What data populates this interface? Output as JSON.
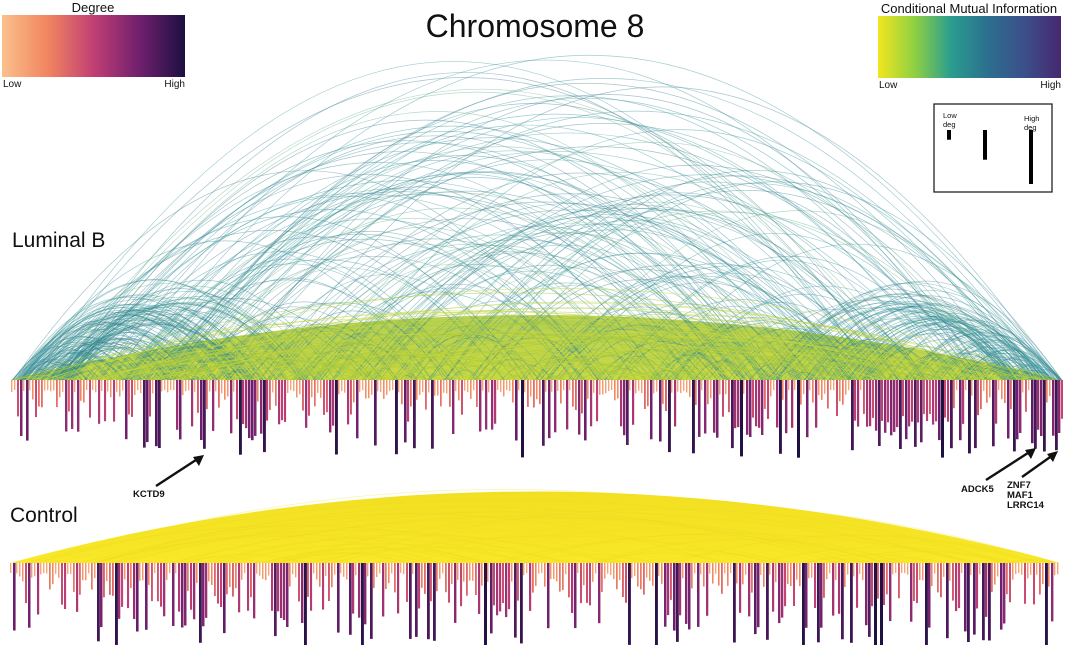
{
  "title": "Chromosome 8",
  "legends": {
    "degree": {
      "title": "Degree",
      "low": "Low",
      "high": "High",
      "colors": [
        "#fbc08d",
        "#f1855f",
        "#c13f74",
        "#701f6e",
        "#1c1040"
      ]
    },
    "cmi": {
      "title": "Conditional Mutual Information",
      "low": "Low",
      "high": "High",
      "colors": [
        "#f2e61f",
        "#8fd043",
        "#2a9d8f",
        "#2c6f8e",
        "#3b4f8a",
        "#46286f"
      ]
    }
  },
  "width_key": {
    "low_label": [
      "Low",
      "deg"
    ],
    "high_label": [
      "High",
      "deg"
    ],
    "bar_levels": [
      0.18,
      0.55,
      1.0
    ]
  },
  "panels": [
    {
      "label": "Luminal B"
    },
    {
      "label": "Control"
    }
  ],
  "gene_labels": [
    {
      "text": [
        "KCTD9"
      ]
    },
    {
      "text": [
        "ADCK5"
      ]
    },
    {
      "text": [
        "ZNF7",
        "MAF1",
        "LRRC14"
      ]
    }
  ]
}
